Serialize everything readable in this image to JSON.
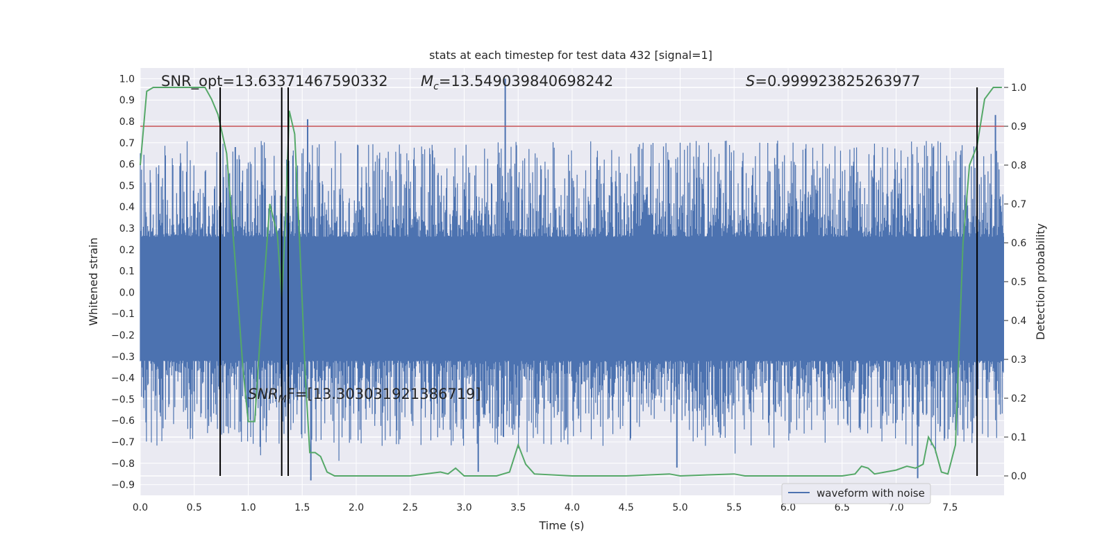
{
  "chart_data": {
    "type": "line",
    "title": "stats at each timestep for test data 432 [signal=1]",
    "xlabel": "Time (s)",
    "ylabel_left": "Whitened strain",
    "ylabel_right": "Detection probability",
    "xlim": [
      0.0,
      8.0
    ],
    "ylim_left": [
      -0.95,
      1.05
    ],
    "ylim_right": [
      -0.05,
      1.05
    ],
    "x_ticks": [
      "0.0",
      "0.5",
      "1.0",
      "1.5",
      "2.0",
      "2.5",
      "3.0",
      "3.5",
      "4.0",
      "4.5",
      "5.0",
      "5.5",
      "6.0",
      "6.5",
      "7.0",
      "7.5"
    ],
    "y_ticks_left": [
      "-0.9",
      "-0.8",
      "-0.7",
      "-0.6",
      "-0.5",
      "-0.4",
      "-0.3",
      "-0.2",
      "-0.1",
      "0.0",
      "0.1",
      "0.2",
      "0.3",
      "0.4",
      "0.5",
      "0.6",
      "0.7",
      "0.8",
      "0.9",
      "1.0"
    ],
    "y_ticks_right": [
      "0.0",
      "0.1",
      "0.2",
      "0.3",
      "0.4",
      "0.5",
      "0.6",
      "0.7",
      "0.8",
      "0.9",
      "1.0"
    ],
    "grid": true,
    "legend": {
      "position": "lower-right",
      "entries": [
        "waveform with noise"
      ]
    },
    "annotations": {
      "snr_opt": "SNR_opt=13.63371467590332",
      "mc_symbol": "M",
      "mc_subscript": "c",
      "mc_value": "=13.549039840698242",
      "s_symbol": "S",
      "s_value": "=0.999923825263977",
      "snr_mf_symbol": "SNR",
      "snr_mf_subscript": "M",
      "snr_mf_value": "F=[13.303031921386719]"
    },
    "threshold_right": 0.9,
    "vlines_x": [
      0.74,
      1.31,
      1.37,
      7.75
    ],
    "waveform": {
      "name": "waveform with noise",
      "color": "#4c72b0",
      "band": [
        -0.32,
        0.26
      ],
      "spikes": [
        {
          "x": 3.38,
          "y": 1.0
        },
        {
          "x": 1.55,
          "y": 0.81
        },
        {
          "x": 7.92,
          "y": 0.83
        },
        {
          "x": 1.58,
          "y": -0.88
        },
        {
          "x": 3.13,
          "y": -0.84
        },
        {
          "x": 0.88,
          "y": 0.68
        },
        {
          "x": 7.2,
          "y": -0.87
        },
        {
          "x": 4.97,
          "y": -0.82
        }
      ]
    },
    "detection_probability": {
      "color": "#55a868",
      "points": [
        [
          0.0,
          0.8
        ],
        [
          0.06,
          0.99
        ],
        [
          0.12,
          1.0
        ],
        [
          0.3,
          1.0
        ],
        [
          0.6,
          1.0
        ],
        [
          0.66,
          0.97
        ],
        [
          0.72,
          0.93
        ],
        [
          0.8,
          0.83
        ],
        [
          0.88,
          0.55
        ],
        [
          0.95,
          0.28
        ],
        [
          1.0,
          0.14
        ],
        [
          1.06,
          0.14
        ],
        [
          1.12,
          0.4
        ],
        [
          1.2,
          0.7
        ],
        [
          1.27,
          0.62
        ],
        [
          1.31,
          0.46
        ],
        [
          1.34,
          0.62
        ],
        [
          1.38,
          0.94
        ],
        [
          1.43,
          0.88
        ],
        [
          1.48,
          0.58
        ],
        [
          1.53,
          0.25
        ],
        [
          1.57,
          0.06
        ],
        [
          1.62,
          0.06
        ],
        [
          1.67,
          0.05
        ],
        [
          1.73,
          0.01
        ],
        [
          1.8,
          0.0
        ],
        [
          2.0,
          0.0
        ],
        [
          2.5,
          0.0
        ],
        [
          2.78,
          0.01
        ],
        [
          2.85,
          0.005
        ],
        [
          2.92,
          0.02
        ],
        [
          3.0,
          0.0
        ],
        [
          3.3,
          0.0
        ],
        [
          3.42,
          0.01
        ],
        [
          3.5,
          0.08
        ],
        [
          3.57,
          0.03
        ],
        [
          3.65,
          0.005
        ],
        [
          4.0,
          0.0
        ],
        [
          4.5,
          0.0
        ],
        [
          4.9,
          0.005
        ],
        [
          5.0,
          0.0
        ],
        [
          5.5,
          0.005
        ],
        [
          5.6,
          0.0
        ],
        [
          6.5,
          0.0
        ],
        [
          6.62,
          0.005
        ],
        [
          6.68,
          0.025
        ],
        [
          6.74,
          0.02
        ],
        [
          6.8,
          0.005
        ],
        [
          6.9,
          0.01
        ],
        [
          7.0,
          0.015
        ],
        [
          7.1,
          0.025
        ],
        [
          7.18,
          0.02
        ],
        [
          7.25,
          0.03
        ],
        [
          7.3,
          0.1
        ],
        [
          7.36,
          0.07
        ],
        [
          7.42,
          0.01
        ],
        [
          7.48,
          0.005
        ],
        [
          7.55,
          0.08
        ],
        [
          7.62,
          0.6
        ],
        [
          7.68,
          0.8
        ],
        [
          7.75,
          0.85
        ],
        [
          7.82,
          0.97
        ],
        [
          7.9,
          1.0
        ],
        [
          7.98,
          1.0
        ]
      ]
    }
  },
  "colors": {
    "axes_bg": "#eaeaf2",
    "grid": "#ffffff",
    "threshold": "#c44e52",
    "vline": "#000000",
    "text": "#262626"
  }
}
